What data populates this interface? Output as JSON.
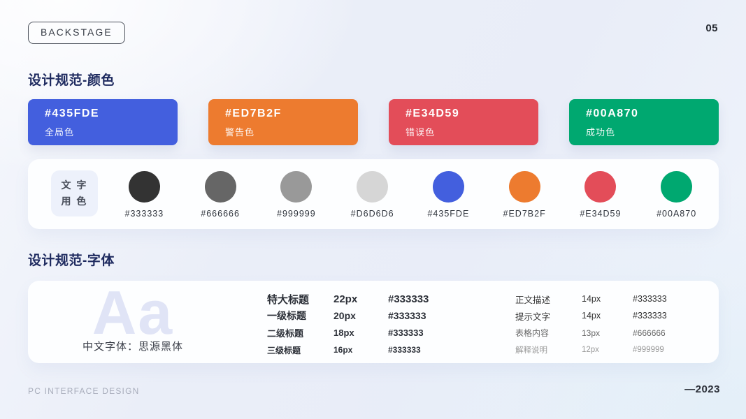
{
  "page": {
    "badge": "BACKSTAGE",
    "page_number": "05",
    "footer_left": "PC INTERFACE DESIGN",
    "footer_right": "—2023"
  },
  "colors_section": {
    "title": "设计规范-颜色",
    "cards": [
      {
        "hex": "#435FDE",
        "label": "全局色",
        "color": "#435FDE"
      },
      {
        "hex": "#ED7B2F",
        "label": "警告色",
        "color": "#ED7B2F"
      },
      {
        "hex": "#E34D59",
        "label": "错误色",
        "color": "#E34D59"
      },
      {
        "hex": "#00A870",
        "label": "成功色",
        "color": "#00A870"
      }
    ],
    "text_colors": {
      "label_line1": "文 字",
      "label_line2": "用 色",
      "swatches": [
        {
          "hex": "#333333",
          "color": "#333333"
        },
        {
          "hex": "#666666",
          "color": "#666666"
        },
        {
          "hex": "#999999",
          "color": "#999999"
        },
        {
          "hex": "#D6D6D6",
          "color": "#D6D6D6"
        },
        {
          "hex": "#435FDE",
          "color": "#435FDE"
        },
        {
          "hex": "#ED7B2F",
          "color": "#ED7B2F"
        },
        {
          "hex": "#E34D59",
          "color": "#E34D59"
        },
        {
          "hex": "#00A870",
          "color": "#00A870"
        }
      ]
    }
  },
  "typography_section": {
    "title": "设计规范-字体",
    "specimen": {
      "glyph": "Aa",
      "font_label": "中文字体：思源黑体"
    },
    "heading_styles": [
      {
        "name": "特大标题",
        "size": "22px",
        "color_value": "#333333"
      },
      {
        "name": "一级标题",
        "size": "20px",
        "color_value": "#333333"
      },
      {
        "name": "二级标题",
        "size": "18px",
        "color_value": "#333333"
      },
      {
        "name": "三级标题",
        "size": "16px",
        "color_value": "#333333"
      }
    ],
    "body_styles": [
      {
        "name": "正文描述",
        "size": "14px",
        "color_value": "#333333",
        "text_color": "#333333"
      },
      {
        "name": "提示文字",
        "size": "14px",
        "color_value": "#333333",
        "text_color": "#333333"
      },
      {
        "name": "表格内容",
        "size": "13px",
        "color_value": "#666666",
        "text_color": "#666666"
      },
      {
        "name": "解释说明",
        "size": "12px",
        "color_value": "#999999",
        "text_color": "#999999"
      }
    ]
  }
}
